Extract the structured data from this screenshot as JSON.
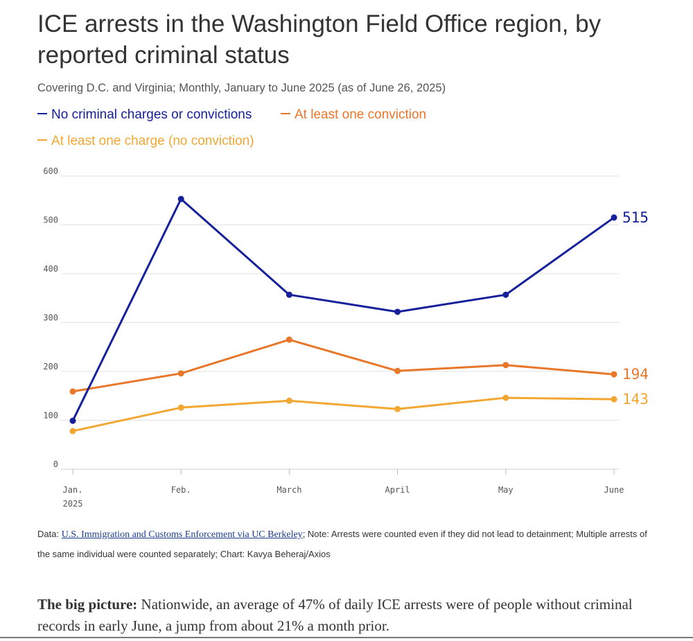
{
  "title": "ICE arrests in the Washington Field Office region, by reported criminal status",
  "subtitle": "Covering D.C. and Virginia; Monthly, January to June 2025 (as of June 26, 2025)",
  "colors": {
    "no_charges": "#16209a",
    "conviction": "#e8772a",
    "charge": "#f2a732",
    "grid": "#e2e2e2",
    "axis": "#555555"
  },
  "chart_data": {
    "type": "line",
    "categories": [
      "Jan.",
      "Feb.",
      "March",
      "April",
      "May",
      "June"
    ],
    "category_sublabels": [
      "2025",
      "",
      "",
      "",
      "",
      ""
    ],
    "ylim": [
      0,
      600
    ],
    "yticks": [
      0,
      100,
      200,
      300,
      400,
      500,
      600
    ],
    "series": [
      {
        "name": "No criminal charges or convictions",
        "color": "#16209a",
        "values": [
          99,
          553,
          357,
          322,
          357,
          515
        ],
        "end_label": "515"
      },
      {
        "name": "At least one conviction",
        "color": "#e8772a",
        "values": [
          159,
          196,
          265,
          201,
          213,
          194
        ],
        "end_label": "194"
      },
      {
        "name": "At least one charge (no conviction)",
        "color": "#f2a732",
        "values": [
          78,
          126,
          140,
          123,
          146,
          143
        ],
        "end_label": "143"
      }
    ]
  },
  "source": {
    "prefix": "Data: ",
    "link_text": "U.S. Immigration and Customs Enforcement via UC Berkeley",
    "suffix": "; Note: Arrests were counted even if they did not lead to detainment; Multiple arrests of the same individual were counted separately; Chart: Kavya Beheraj/Axios"
  },
  "big_picture": {
    "lead": "The big picture:",
    "text": " Nationwide, an average of 47% of daily ICE arrests were of people without criminal records in early June, a jump from about 21% a month prior."
  }
}
